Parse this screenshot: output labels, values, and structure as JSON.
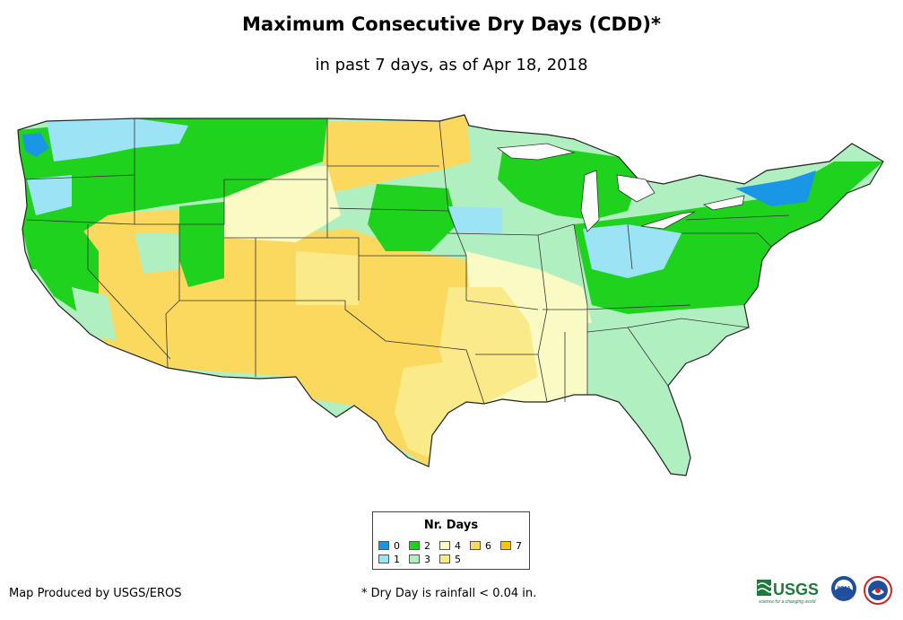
{
  "title": "Maximum Consecutive Dry Days (CDD)*",
  "subtitle": "in past 7 days, as of Apr 18, 2018",
  "legend": {
    "title": "Nr. Days",
    "items": [
      {
        "label": "0",
        "color": "#1a96e6"
      },
      {
        "label": "1",
        "color": "#9be3f5"
      },
      {
        "label": "2",
        "color": "#1ed21e"
      },
      {
        "label": "3",
        "color": "#b0f0c0"
      },
      {
        "label": "4",
        "color": "#fafac4"
      },
      {
        "label": "5",
        "color": "#fbea8a"
      },
      {
        "label": "6",
        "color": "#fbd95f"
      },
      {
        "label": "7",
        "color": "#fcc40a"
      }
    ]
  },
  "credit": "Map Produced by USGS/EROS",
  "footnote": "* Dry Day is rainfall < 0.04 in.",
  "logos": {
    "usgs_text": "USGS",
    "usgs_tagline": "science for a changing world",
    "noaa_text": "NOAA"
  }
}
